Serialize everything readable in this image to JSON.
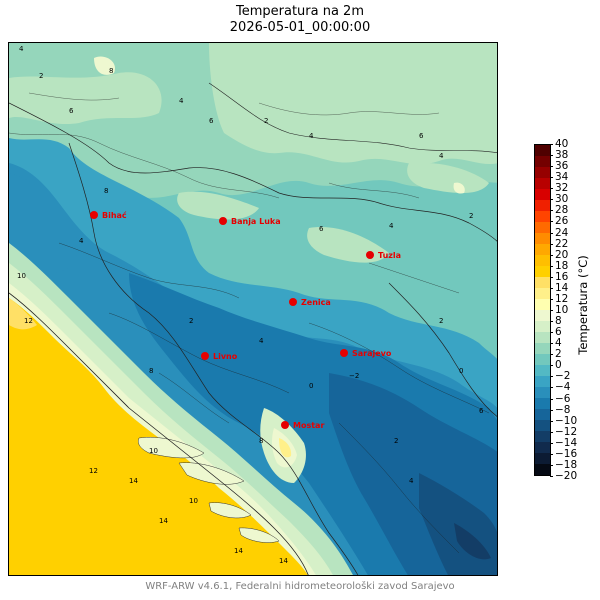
{
  "title": "Temperatura na 2m",
  "subtitle": "2026-05-01_00:00:00",
  "credit": "WRF-ARW v4.6.1, Federalni hidrometeorološki zavod Sarajevo",
  "colorbar": {
    "label": "Temperatura (°C)",
    "min": -20,
    "max": 40,
    "ticks": [
      "40",
      "38",
      "36",
      "34",
      "32",
      "30",
      "28",
      "26",
      "24",
      "22",
      "20",
      "18",
      "16",
      "14",
      "12",
      "10",
      "8",
      "6",
      "4",
      "2",
      "0",
      "−2",
      "−4",
      "−6",
      "−8",
      "−10",
      "−12",
      "−14",
      "−16",
      "−18",
      "−20"
    ],
    "colors": [
      "#050a14",
      "#0c1b33",
      "#112b4d",
      "#133d66",
      "#145180",
      "#16659a",
      "#1a7aad",
      "#2a8fbb",
      "#3aa4c4",
      "#53b9c4",
      "#72c8bd",
      "#95d6bb",
      "#b8e4c0",
      "#d6f0c8",
      "#eef8d0",
      "#ffffb0",
      "#fff08a",
      "#ffe066",
      "#ffd000",
      "#ffbf00",
      "#ffa800",
      "#ff8c00",
      "#ff6a00",
      "#ff4400",
      "#f02000",
      "#d80000",
      "#b80000",
      "#960000",
      "#740000",
      "#500000"
    ]
  },
  "cities": [
    {
      "name": "Bihać"
    },
    {
      "name": "Banja Luka"
    },
    {
      "name": "Tuzla"
    },
    {
      "name": "Zenica"
    },
    {
      "name": "Sarajevo"
    },
    {
      "name": "Livno"
    },
    {
      "name": "Mostar"
    }
  ],
  "contour_labels": [
    "4",
    "2",
    "6",
    "8",
    "4",
    "6",
    "2",
    "4",
    "6",
    "4",
    "2",
    "8",
    "4",
    "10",
    "12",
    "14",
    "14",
    "10",
    "14",
    "8",
    "0",
    "−2",
    "6",
    "4",
    "2",
    "0",
    "6",
    "4",
    "2",
    "4",
    "2",
    "12",
    "10",
    "8",
    "14"
  ]
}
